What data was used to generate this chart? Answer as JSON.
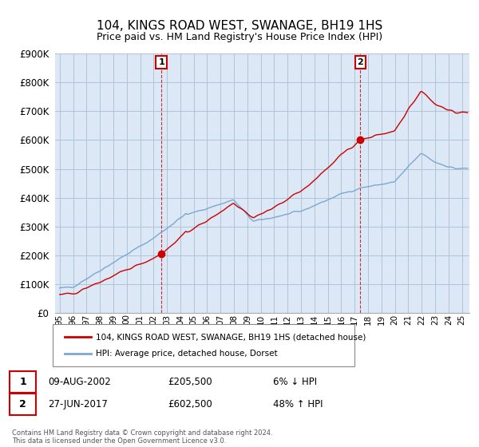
{
  "title": "104, KINGS ROAD WEST, SWANAGE, BH19 1HS",
  "subtitle": "Price paid vs. HM Land Registry's House Price Index (HPI)",
  "ylim": [
    0,
    900000
  ],
  "yticks": [
    0,
    100000,
    200000,
    300000,
    400000,
    500000,
    600000,
    700000,
    800000,
    900000
  ],
  "sale1_date": "09-AUG-2002",
  "sale1_price": 205500,
  "sale1_year": 2002.62,
  "sale2_date": "27-JUN-2017",
  "sale2_price": 602500,
  "sale2_year": 2017.49,
  "sale1_hpi_diff": "6% ↓ HPI",
  "sale2_hpi_diff": "48% ↑ HPI",
  "legend_property": "104, KINGS ROAD WEST, SWANAGE, BH19 1HS (detached house)",
  "legend_hpi": "HPI: Average price, detached house, Dorset",
  "footnote": "Contains HM Land Registry data © Crown copyright and database right 2024.\nThis data is licensed under the Open Government Licence v3.0.",
  "property_color": "#cc0000",
  "hpi_color": "#7aa8d2",
  "background_color": "#ffffff",
  "plot_bg_color": "#dce8f5",
  "grid_color": "#b0c4d8"
}
